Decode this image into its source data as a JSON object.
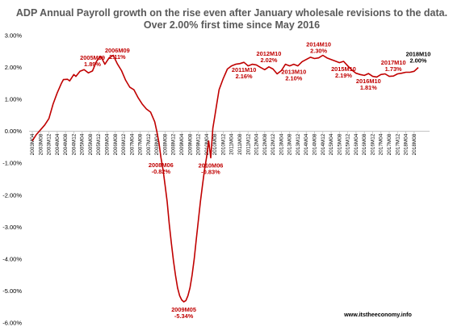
{
  "chart_data": {
    "type": "line",
    "title": "ADP Annual Payroll growth on the rise even after January wholesale revisions to the data.",
    "subtitle": "Over 2.00% first time since May 2016",
    "source": "www.itstheeconomy.info",
    "xlabel": "",
    "ylabel": "",
    "ylim": [
      -6,
      3
    ],
    "y_ticks": [
      "3.00%",
      "2.00%",
      "1.00%",
      "0.00%",
      "-1.00%",
      "-2.00%",
      "-3.00%",
      "-4.00%",
      "-5.00%",
      "-6.00%"
    ],
    "x_ticks": [
      "2003M04",
      "2003M08",
      "2003M12",
      "2004M04",
      "2004M08",
      "2004M12",
      "2005M04",
      "2005M08",
      "2005M12",
      "2006M04",
      "2006M08",
      "2006M12",
      "2007M04",
      "2007M08",
      "2007M12",
      "2008M04",
      "2008M08",
      "2008M12",
      "2009M04",
      "2009M08",
      "2009M12",
      "2010M04",
      "2010M08",
      "2010M12",
      "2011M04",
      "2011M08",
      "2011M12",
      "2012M04",
      "2012M08",
      "2012M12",
      "2013M04",
      "2013M08",
      "2013M12",
      "2014M04",
      "2014M08",
      "2014M12",
      "2015M04",
      "2015M08",
      "2015M12",
      "2016M04",
      "2016M08",
      "2016M12",
      "2017M04",
      "2017M08",
      "2017M12",
      "2018M04",
      "2018M08"
    ],
    "grid": false,
    "legend": "none",
    "series": [
      {
        "color": "#c00000",
        "points": [
          [
            "2003M04",
            -0.3
          ],
          [
            "2003M06",
            -0.1
          ],
          [
            "2003M08",
            0.05
          ],
          [
            "2003M10",
            0.2
          ],
          [
            "2003M12",
            0.4
          ],
          [
            "2004M02",
            0.85
          ],
          [
            "2004M04",
            1.2
          ],
          [
            "2004M06",
            1.5
          ],
          [
            "2004M07",
            1.62
          ],
          [
            "2004M09",
            1.63
          ],
          [
            "2004M10",
            1.58
          ],
          [
            "2004M12",
            1.78
          ],
          [
            "2005M01",
            1.72
          ],
          [
            "2005M03",
            1.88
          ],
          [
            "2005M05",
            1.93
          ],
          [
            "2005M07",
            1.83
          ],
          [
            "2005M09",
            1.89
          ],
          [
            "2005M11",
            2.2
          ],
          [
            "2006M01",
            2.35
          ],
          [
            "2006M03",
            2.1
          ],
          [
            "2006M05",
            2.3
          ],
          [
            "2006M07",
            2.38
          ],
          [
            "2006M09",
            2.11
          ],
          [
            "2006M11",
            1.9
          ],
          [
            "2007M01",
            1.6
          ],
          [
            "2007M03",
            1.38
          ],
          [
            "2007M05",
            1.3
          ],
          [
            "2007M07",
            1.05
          ],
          [
            "2007M09",
            0.85
          ],
          [
            "2007M11",
            0.7
          ],
          [
            "2008M01",
            0.6
          ],
          [
            "2008M03",
            0.3
          ],
          [
            "2008M04",
            0.0
          ],
          [
            "2008M05",
            -0.35
          ],
          [
            "2008M06",
            -0.82
          ],
          [
            "2008M07",
            -1.2
          ],
          [
            "2008M08",
            -1.7
          ],
          [
            "2008M09",
            -2.2
          ],
          [
            "2008M10",
            -2.9
          ],
          [
            "2008M11",
            -3.5
          ],
          [
            "2008M12",
            -4.05
          ],
          [
            "2009M01",
            -4.5
          ],
          [
            "2009M02",
            -4.9
          ],
          [
            "2009M03",
            -5.15
          ],
          [
            "2009M04",
            -5.28
          ],
          [
            "2009M05",
            -5.34
          ],
          [
            "2009M06",
            -5.3
          ],
          [
            "2009M07",
            -5.15
          ],
          [
            "2009M08",
            -4.9
          ],
          [
            "2009M09",
            -4.5
          ],
          [
            "2009M10",
            -4.0
          ],
          [
            "2009M11",
            -3.4
          ],
          [
            "2009M12",
            -2.8
          ],
          [
            "2010M01",
            -2.2
          ],
          [
            "2010M02",
            -1.7
          ],
          [
            "2010M03",
            -1.2
          ],
          [
            "2010M04",
            -0.8
          ],
          [
            "2010M05",
            -0.3
          ],
          [
            "2010M06",
            -0.83
          ],
          [
            "2010M07",
            0.1
          ],
          [
            "2010M08",
            0.5
          ],
          [
            "2010M09",
            0.9
          ],
          [
            "2010M10",
            1.3
          ],
          [
            "2010M12",
            1.65
          ],
          [
            "2011M02",
            1.95
          ],
          [
            "2011M04",
            2.05
          ],
          [
            "2011M06",
            2.1
          ],
          [
            "2011M08",
            2.12
          ],
          [
            "2011M10",
            2.16
          ],
          [
            "2011M12",
            2.05
          ],
          [
            "2012M02",
            2.1
          ],
          [
            "2012M04",
            2.08
          ],
          [
            "2012M06",
            2.0
          ],
          [
            "2012M08",
            1.93
          ],
          [
            "2012M10",
            2.02
          ],
          [
            "2012M12",
            1.95
          ],
          [
            "2013M02",
            1.8
          ],
          [
            "2013M04",
            1.9
          ],
          [
            "2013M06",
            2.1
          ],
          [
            "2013M08",
            2.05
          ],
          [
            "2013M10",
            2.1
          ],
          [
            "2013M12",
            2.05
          ],
          [
            "2014M02",
            2.18
          ],
          [
            "2014M04",
            2.25
          ],
          [
            "2014M06",
            2.32
          ],
          [
            "2014M08",
            2.28
          ],
          [
            "2014M10",
            2.3
          ],
          [
            "2014M12",
            2.38
          ],
          [
            "2015M02",
            2.3
          ],
          [
            "2015M04",
            2.25
          ],
          [
            "2015M06",
            2.2
          ],
          [
            "2015M08",
            2.15
          ],
          [
            "2015M10",
            2.19
          ],
          [
            "2015M12",
            2.05
          ],
          [
            "2016M02",
            1.92
          ],
          [
            "2016M04",
            1.82
          ],
          [
            "2016M06",
            1.78
          ],
          [
            "2016M08",
            1.75
          ],
          [
            "2016M10",
            1.81
          ],
          [
            "2016M12",
            1.72
          ],
          [
            "2017M02",
            1.7
          ],
          [
            "2017M04",
            1.78
          ],
          [
            "2017M06",
            1.8
          ],
          [
            "2017M08",
            1.72
          ],
          [
            "2017M10",
            1.73
          ],
          [
            "2017M12",
            1.8
          ],
          [
            "2018M02",
            1.82
          ],
          [
            "2018M04",
            1.85
          ],
          [
            "2018M06",
            1.85
          ],
          [
            "2018M08",
            1.88
          ],
          [
            "2018M10",
            2.0
          ]
        ]
      }
    ],
    "annotations": [
      {
        "period": "2005M09",
        "value": "1.89%",
        "side": "above",
        "color": "#c00000"
      },
      {
        "period": "2006M09",
        "value": "2.11%",
        "side": "above",
        "color": "#c00000"
      },
      {
        "period": "2008M06",
        "value": "-0.82%",
        "side": "below",
        "color": "#c00000"
      },
      {
        "period": "2009M05",
        "value": "-5.34%",
        "side": "below",
        "color": "#c00000"
      },
      {
        "period": "2010M06",
        "value": "-0.83%",
        "side": "below",
        "color": "#c00000"
      },
      {
        "period": "2011M10",
        "value": "2.16%",
        "side": "below",
        "color": "#c00000"
      },
      {
        "period": "2012M10",
        "value": "2.02%",
        "side": "above",
        "color": "#c00000"
      },
      {
        "period": "2013M10",
        "value": "2.10%",
        "side": "below",
        "color": "#c00000"
      },
      {
        "period": "2014M10",
        "value": "2.30%",
        "side": "above",
        "color": "#c00000"
      },
      {
        "period": "2015M10",
        "value": "2.19%",
        "side": "below",
        "color": "#c00000"
      },
      {
        "period": "2016M10",
        "value": "1.81%",
        "side": "below",
        "color": "#c00000"
      },
      {
        "period": "2017M10",
        "value": "1.73%",
        "side": "above",
        "color": "#c00000"
      },
      {
        "period": "2018M10",
        "value": "2.00%",
        "side": "above",
        "color": "#000000"
      }
    ]
  }
}
